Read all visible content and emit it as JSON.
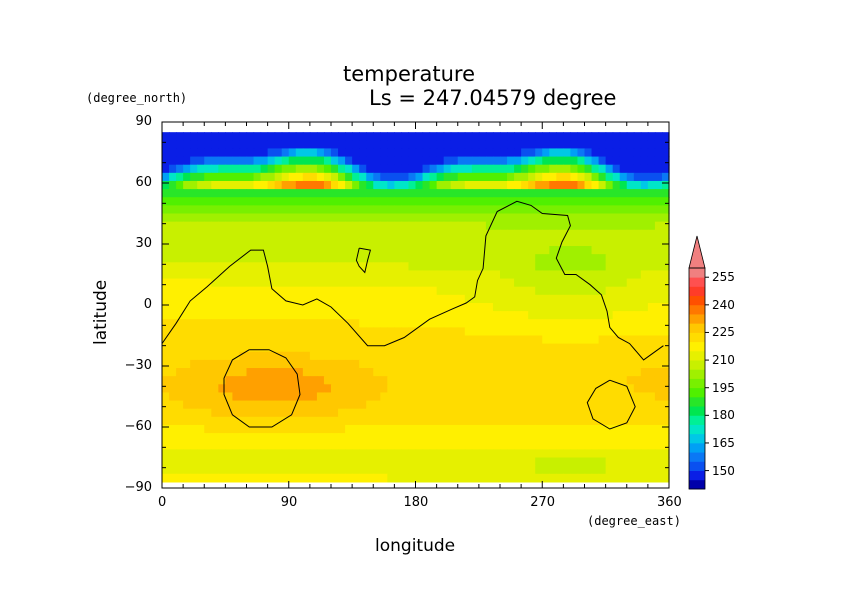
{
  "chart_data": {
    "type": "heatmap",
    "title": "temperature",
    "subtitle": "Ls = 247.04579 degree",
    "xlabel": "longitude",
    "ylabel": "latitude",
    "x_unit": "(degree_east)",
    "y_unit": "(degree_north)",
    "xlim": [
      0,
      360
    ],
    "ylim": [
      -90,
      90
    ],
    "x_ticks": [
      0,
      90,
      180,
      270,
      360
    ],
    "y_ticks": [
      90,
      60,
      30,
      0,
      -30,
      -60,
      -90
    ],
    "y_tick_labels": [
      "90",
      "60",
      "30",
      "0",
      "−30",
      "−60",
      "−90"
    ],
    "data_lat_range": [
      -87,
      85
    ],
    "colorbar": {
      "levels": [
        140,
        145,
        150,
        155,
        160,
        165,
        170,
        175,
        180,
        185,
        190,
        195,
        200,
        205,
        210,
        215,
        220,
        225,
        230,
        235,
        240,
        245,
        250,
        255,
        260
      ],
      "tick_labels": [
        "150",
        "165",
        "180",
        "195",
        "210",
        "225",
        "240",
        "255"
      ],
      "colors": [
        "#0000aa",
        "#0a1ee6",
        "#0a50f0",
        "#0a78f5",
        "#00a0f5",
        "#00c8e6",
        "#00e6c8",
        "#00f096",
        "#00e650",
        "#28e628",
        "#50f000",
        "#78f000",
        "#a0f000",
        "#c8f000",
        "#e6f000",
        "#fff000",
        "#ffdc00",
        "#ffc800",
        "#ffa000",
        "#ff7800",
        "#ff5000",
        "#ff3c28",
        "#ff5050",
        "#f08080"
      ],
      "extend": "max"
    },
    "contour_level": 210
  }
}
